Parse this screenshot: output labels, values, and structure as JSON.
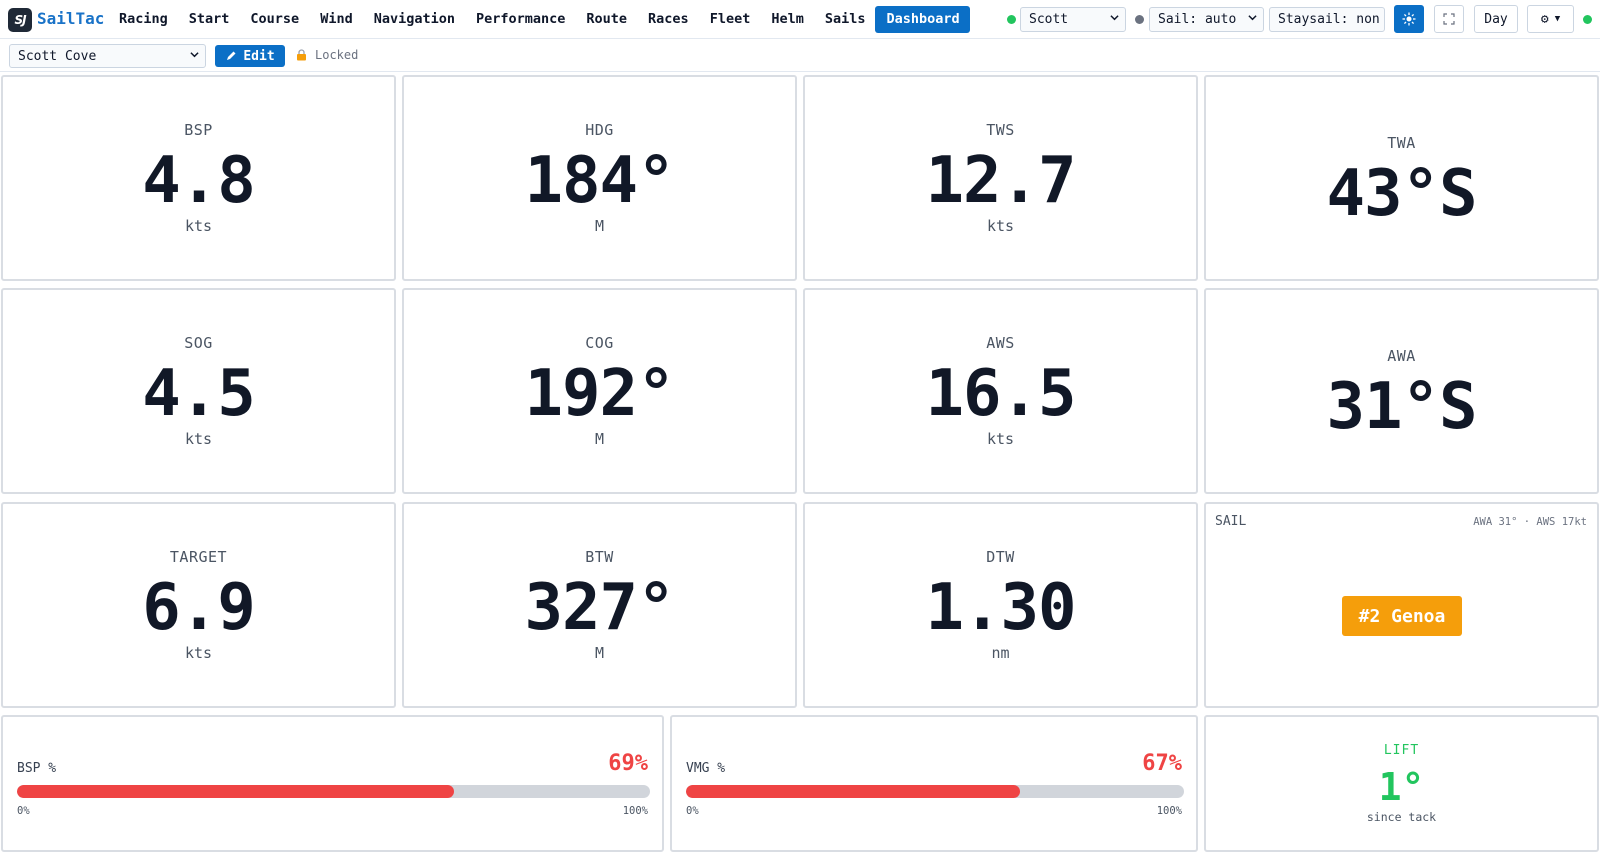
{
  "app": {
    "logo_text": "SJ",
    "brand": "SailTac"
  },
  "nav": [
    {
      "label": "Racing"
    },
    {
      "label": "Start"
    },
    {
      "label": "Course"
    },
    {
      "label": "Wind"
    },
    {
      "label": "Navigation"
    },
    {
      "label": "Performance"
    },
    {
      "label": "Route"
    },
    {
      "label": "Races"
    },
    {
      "label": "Fleet"
    },
    {
      "label": "Helm"
    },
    {
      "label": "Sails"
    },
    {
      "label": "Dashboard",
      "active": true
    }
  ],
  "header": {
    "boat_select": "Scott",
    "sail_select": "Sail: auto",
    "staysail_select": "Staysail: non",
    "brightness_icon": "sun-icon",
    "fullscreen_icon": "fullscreen-icon",
    "mode_button": "Day",
    "settings_icon": "gear-icon",
    "status_colors": {
      "connected": "#22c55e",
      "sail_status": "#6b7280"
    }
  },
  "toolbar": {
    "layout_select": "Scott Cove",
    "edit_label": "Edit",
    "locked_label": "Locked"
  },
  "tiles": {
    "bsp": {
      "label": "BSP",
      "value": "4.8",
      "unit": "kts"
    },
    "hdg": {
      "label": "HDG",
      "value": "184°",
      "unit": "M"
    },
    "tws": {
      "label": "TWS",
      "value": "12.7",
      "unit": "kts"
    },
    "twa": {
      "label": "TWA",
      "value": "43°S"
    },
    "sog": {
      "label": "SOG",
      "value": "4.5",
      "unit": "kts"
    },
    "cog": {
      "label": "COG",
      "value": "192°",
      "unit": "M"
    },
    "aws": {
      "label": "AWS",
      "value": "16.5",
      "unit": "kts"
    },
    "awa": {
      "label": "AWA",
      "value": "31°S"
    },
    "target": {
      "label": "TARGET",
      "value": "6.9",
      "unit": "kts"
    },
    "btw": {
      "label": "BTW",
      "value": "327°",
      "unit": "M"
    },
    "dtw": {
      "label": "DTW",
      "value": "1.30",
      "unit": "nm"
    }
  },
  "sail": {
    "label": "SAIL",
    "info": "AWA 31° · AWS 17kt",
    "badge": "#2 Genoa",
    "badge_color": "#f59e0b"
  },
  "bsp_pct": {
    "label": "BSP %",
    "value_text": "69%",
    "fraction": 0.69,
    "min": "0%",
    "max": "100%",
    "color": "#ef4444"
  },
  "vmg_pct": {
    "label": "VMG %",
    "value_text": "67%",
    "fraction": 0.67,
    "min": "0%",
    "max": "100%",
    "color": "#ef4444"
  },
  "lift": {
    "label": "LIFT",
    "value": "1°",
    "sub": "since tack",
    "color": "#22c55e"
  }
}
